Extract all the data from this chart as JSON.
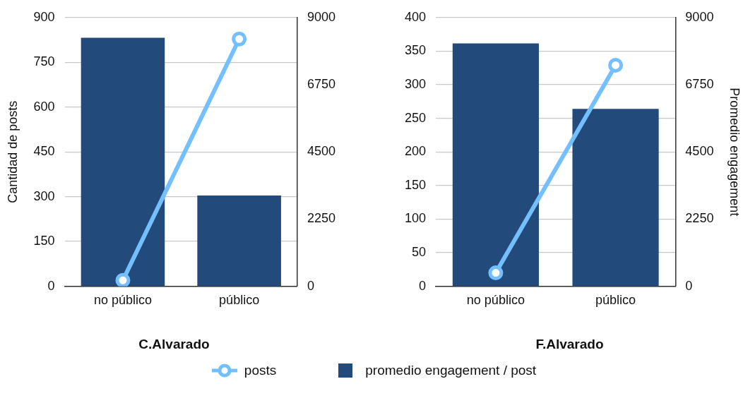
{
  "chart_data": [
    {
      "type": "bar",
      "title": "C.Alvarado",
      "ylabel": "Cantidad de posts",
      "categories": [
        "no público",
        "público"
      ],
      "ylim": [
        0,
        900
      ],
      "yticks": [
        0,
        150,
        300,
        450,
        600,
        750,
        900
      ],
      "y2lim": [
        0,
        9000
      ],
      "y2ticks": [
        0,
        2250,
        4500,
        6750,
        9000
      ],
      "grid": "y",
      "legend": "bottom",
      "marker": "circle",
      "series": [
        {
          "name": "posts",
          "type": "line",
          "color": "#73bfff",
          "values": [
            20,
            828
          ]
        },
        {
          "name": "promedio engagement / post",
          "axis": "y2",
          "color": "#224b7c",
          "values": [
            8320,
            3040
          ]
        }
      ]
    },
    {
      "type": "bar",
      "title": "F.Alvarado",
      "y2label": "Promedio engagement",
      "categories": [
        "no público",
        "público"
      ],
      "ylim": [
        0,
        400
      ],
      "yticks": [
        0,
        50,
        100,
        150,
        200,
        250,
        300,
        350,
        400
      ],
      "y2lim": [
        0,
        9000
      ],
      "y2ticks": [
        0,
        2250,
        4500,
        6750,
        9000
      ],
      "grid": "y",
      "legend": "bottom",
      "marker": "circle",
      "series": [
        {
          "name": "posts",
          "type": "line",
          "color": "#73bfff",
          "values": [
            20,
            329
          ]
        },
        {
          "name": "promedio engagement / post",
          "axis": "y2",
          "color": "#224b7c",
          "values": [
            8130,
            5940
          ]
        }
      ]
    }
  ]
}
